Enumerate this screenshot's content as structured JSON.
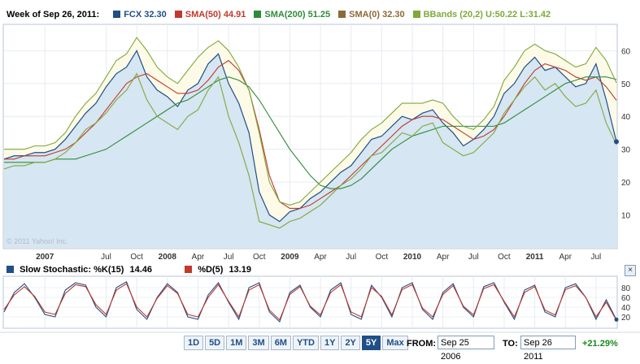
{
  "header": {
    "week_label": "Week of Sep 26, 2011:",
    "legend": [
      {
        "name": "FCX",
        "value": "32.30",
        "color": "#1f4f86"
      },
      {
        "name": "SMA(50)",
        "value": "44.91",
        "color": "#c0392b"
      },
      {
        "name": "SMA(200)",
        "value": "51.25",
        "color": "#2e8b3a"
      },
      {
        "name": "SMA(0)",
        "value": "32.30",
        "color": "#8b6a3a"
      },
      {
        "name": "BBands (20,2)",
        "value": "U:50.22 L:31.42",
        "color": "#7fa83a"
      }
    ]
  },
  "watermark": "© 2011 Yahoo! Inc.",
  "stoch_header": {
    "k_label": "Slow Stochastic: %K(15)",
    "k_value": "14.46",
    "k_color": "#1f4f86",
    "d_label": "%D(5)",
    "d_value": "13.19",
    "d_color": "#c0392b",
    "close_icon_glyph": "×"
  },
  "controls": {
    "ranges": [
      "1D",
      "5D",
      "1M",
      "3M",
      "6M",
      "YTD",
      "1Y",
      "2Y",
      "5Y",
      "Max"
    ],
    "active_range": "5Y",
    "from_label": "FROM:",
    "from_value": "Sep 25 2006",
    "to_label": "TO:",
    "to_value": "Sep 26 2011",
    "change": "+21.29%",
    "change_color": "#1a8a1a"
  },
  "chart_data": [
    {
      "type": "line",
      "x_ticks": [
        "2007",
        "Jul",
        "Oct",
        "2008",
        "Apr",
        "Jul",
        "Oct",
        "2009",
        "Apr",
        "Jul",
        "Oct",
        "2010",
        "Apr",
        "Jul",
        "Oct",
        "2011",
        "Apr",
        "Jul"
      ],
      "y_ticks": [
        10,
        20,
        30,
        40,
        50,
        60
      ],
      "ylim": [
        0,
        68
      ],
      "x": [
        "2006-09",
        "2006-10",
        "2006-11",
        "2006-12",
        "2007-01",
        "2007-02",
        "2007-03",
        "2007-04",
        "2007-05",
        "2007-06",
        "2007-07",
        "2007-08",
        "2007-09",
        "2007-10",
        "2007-11",
        "2007-12",
        "2008-01",
        "2008-02",
        "2008-03",
        "2008-04",
        "2008-05",
        "2008-06",
        "2008-07",
        "2008-08",
        "2008-09",
        "2008-10",
        "2008-11",
        "2008-12",
        "2009-01",
        "2009-02",
        "2009-03",
        "2009-04",
        "2009-05",
        "2009-06",
        "2009-07",
        "2009-08",
        "2009-09",
        "2009-10",
        "2009-11",
        "2009-12",
        "2010-01",
        "2010-02",
        "2010-03",
        "2010-04",
        "2010-05",
        "2010-06",
        "2010-07",
        "2010-08",
        "2010-09",
        "2010-10",
        "2010-11",
        "2010-12",
        "2011-01",
        "2011-02",
        "2011-03",
        "2011-04",
        "2011-05",
        "2011-06",
        "2011-07",
        "2011-08",
        "2011-09"
      ],
      "series": [
        {
          "name": "FCX",
          "color": "#1f4f86",
          "fill": "#d6e6f2",
          "values": [
            27,
            28,
            28,
            29,
            29,
            30,
            33,
            37,
            41,
            44,
            49,
            53,
            55,
            60,
            52,
            48,
            46,
            43,
            48,
            50,
            56,
            59,
            50,
            44,
            35,
            17,
            10,
            8,
            11,
            12,
            15,
            17,
            20,
            23,
            25,
            29,
            33,
            34,
            37,
            40,
            39,
            41,
            42,
            38,
            35,
            31,
            33,
            36,
            40,
            47,
            50,
            55,
            58,
            54,
            55,
            52,
            49,
            50,
            56,
            45,
            32.3
          ]
        },
        {
          "name": "SMA(50)",
          "color": "#c0392b",
          "values": [
            27,
            27,
            28,
            28,
            28,
            29,
            30,
            32,
            35,
            38,
            42,
            46,
            50,
            52,
            53,
            51,
            49,
            47,
            47,
            48,
            51,
            55,
            57,
            54,
            48,
            36,
            22,
            14,
            12,
            12,
            13,
            15,
            17,
            19,
            22,
            25,
            28,
            31,
            34,
            37,
            39,
            40,
            40,
            39,
            37,
            35,
            33,
            34,
            36,
            40,
            45,
            50,
            54,
            56,
            55,
            54,
            52,
            51,
            52,
            49,
            44.91
          ]
        },
        {
          "name": "SMA(200)",
          "color": "#2e8b3a",
          "values": [
            26,
            26,
            26,
            26,
            26,
            27,
            27,
            27,
            28,
            29,
            30,
            32,
            34,
            36,
            38,
            40,
            42,
            44,
            45,
            47,
            49,
            51,
            52,
            51,
            49,
            45,
            40,
            35,
            30,
            26,
            22,
            19,
            18,
            18,
            19,
            21,
            24,
            27,
            30,
            32,
            34,
            35,
            36,
            37,
            37,
            37,
            37,
            37,
            37,
            38,
            40,
            42,
            44,
            46,
            48,
            50,
            51,
            52,
            52,
            52,
            51.25
          ]
        },
        {
          "name": "BBands (20,2)",
          "color": "#7fa83a",
          "band": "upper",
          "values": [
            30,
            30,
            30,
            31,
            31,
            32,
            35,
            40,
            44,
            47,
            52,
            57,
            59,
            64,
            60,
            55,
            52,
            50,
            54,
            58,
            61,
            63,
            60,
            55,
            48,
            35,
            20,
            14,
            13,
            14,
            17,
            20,
            23,
            26,
            29,
            33,
            36,
            38,
            41,
            44,
            44,
            44,
            45,
            44,
            40,
            37,
            36,
            39,
            43,
            51,
            55,
            60,
            62,
            60,
            59,
            57,
            55,
            56,
            61,
            57,
            50.22
          ]
        },
        {
          "name": "BBands (20,2)",
          "color": "#7fa83a",
          "band": "lower",
          "values": [
            24,
            25,
            25,
            26,
            26,
            27,
            29,
            32,
            36,
            38,
            41,
            45,
            48,
            53,
            45,
            40,
            38,
            36,
            40,
            42,
            48,
            52,
            40,
            32,
            22,
            8,
            7,
            6,
            8,
            9,
            11,
            13,
            16,
            19,
            21,
            24,
            28,
            29,
            32,
            35,
            34,
            37,
            38,
            32,
            30,
            28,
            29,
            32,
            35,
            41,
            45,
            49,
            52,
            48,
            50,
            46,
            43,
            44,
            48,
            38,
            31.42
          ]
        }
      ]
    },
    {
      "type": "line",
      "title": "Slow Stochastic",
      "y_ticks": [
        20,
        40,
        60,
        80
      ],
      "ylim": [
        0,
        100
      ],
      "series": [
        {
          "name": "%K(15)",
          "color": "#1f4f86",
          "values": [
            30,
            70,
            88,
            60,
            25,
            20,
            75,
            90,
            85,
            40,
            20,
            80,
            92,
            35,
            15,
            60,
            88,
            70,
            20,
            15,
            65,
            90,
            50,
            15,
            80,
            90,
            30,
            10,
            70,
            85,
            40,
            20,
            75,
            90,
            25,
            15,
            85,
            60,
            20,
            80,
            90,
            35,
            15,
            70,
            88,
            40,
            20,
            82,
            90,
            50,
            15,
            75,
            85,
            30,
            20,
            80,
            88,
            60,
            15,
            55,
            14.46
          ]
        },
        {
          "name": "%D(5)",
          "color": "#c0392b",
          "values": [
            35,
            65,
            82,
            62,
            30,
            25,
            68,
            86,
            82,
            45,
            25,
            75,
            88,
            40,
            20,
            58,
            84,
            68,
            25,
            20,
            60,
            86,
            52,
            20,
            75,
            86,
            34,
            14,
            66,
            82,
            42,
            24,
            70,
            86,
            30,
            20,
            80,
            62,
            24,
            76,
            86,
            38,
            20,
            66,
            84,
            42,
            24,
            78,
            86,
            52,
            20,
            70,
            82,
            34,
            24,
            76,
            84,
            60,
            20,
            50,
            13.19
          ]
        }
      ]
    }
  ]
}
